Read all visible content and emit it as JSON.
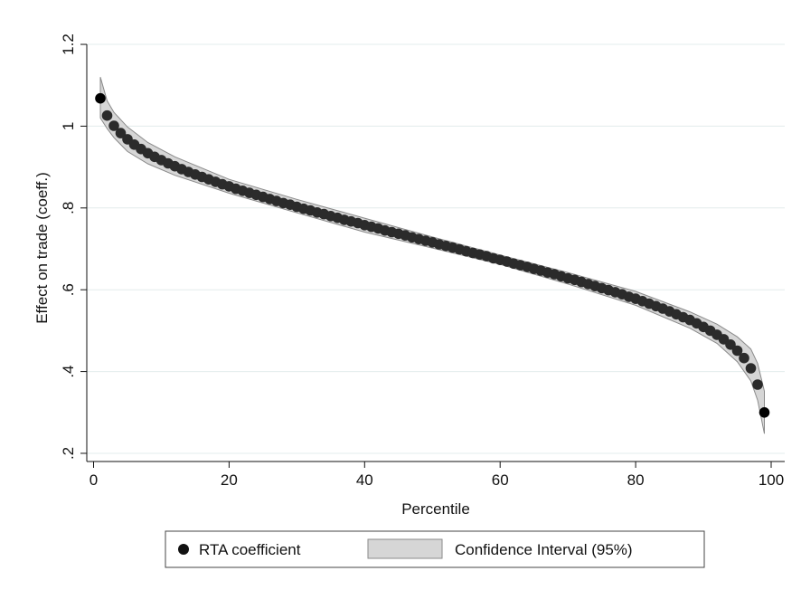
{
  "chart_data": {
    "type": "scatter",
    "xlabel": "Percentile",
    "ylabel": "Effect on trade (coeff.)",
    "xlim": [
      -1,
      102
    ],
    "ylim": [
      0.18,
      1.22
    ],
    "xticks": [
      0,
      20,
      40,
      60,
      80,
      100
    ],
    "xtick_labels": [
      "0",
      "20",
      "40",
      "60",
      "80",
      "100"
    ],
    "yticks": [
      0.2,
      0.4,
      0.6,
      0.8,
      1.0,
      1.2
    ],
    "ytick_labels": [
      ".2",
      ".4",
      ".6",
      ".8",
      "1",
      "1.2"
    ],
    "grid": "horizontal",
    "legend_position": "bottom",
    "colors": {
      "points": "#2b2b2b",
      "band_fill": "#d6d6d6",
      "band_edge": "#8a8a8a",
      "grid": "#e3ecec"
    },
    "series": [
      {
        "name": "RTA coefficient",
        "kind": "points",
        "x": [
          1,
          2,
          3,
          4,
          5,
          6,
          7,
          8,
          9,
          10,
          11,
          12,
          13,
          14,
          15,
          16,
          17,
          18,
          19,
          20,
          21,
          22,
          23,
          24,
          25,
          26,
          27,
          28,
          29,
          30,
          31,
          32,
          33,
          34,
          35,
          36,
          37,
          38,
          39,
          40,
          41,
          42,
          43,
          44,
          45,
          46,
          47,
          48,
          49,
          50,
          51,
          52,
          53,
          54,
          55,
          56,
          57,
          58,
          59,
          60,
          61,
          62,
          63,
          64,
          65,
          66,
          67,
          68,
          69,
          70,
          71,
          72,
          73,
          74,
          75,
          76,
          77,
          78,
          79,
          80,
          81,
          82,
          83,
          84,
          85,
          86,
          87,
          88,
          89,
          90,
          91,
          92,
          93,
          94,
          95,
          96,
          97,
          98,
          99
        ],
        "y": [
          1.068,
          1.026,
          1.001,
          0.983,
          0.968,
          0.955,
          0.944,
          0.934,
          0.925,
          0.917,
          0.909,
          0.902,
          0.895,
          0.888,
          0.882,
          0.876,
          0.87,
          0.864,
          0.858,
          0.853,
          0.847,
          0.842,
          0.837,
          0.832,
          0.827,
          0.822,
          0.817,
          0.812,
          0.808,
          0.803,
          0.798,
          0.794,
          0.789,
          0.785,
          0.78,
          0.776,
          0.771,
          0.767,
          0.763,
          0.758,
          0.754,
          0.75,
          0.745,
          0.741,
          0.737,
          0.733,
          0.728,
          0.724,
          0.72,
          0.716,
          0.711,
          0.707,
          0.703,
          0.699,
          0.694,
          0.69,
          0.686,
          0.682,
          0.677,
          0.673,
          0.669,
          0.664,
          0.66,
          0.656,
          0.651,
          0.647,
          0.642,
          0.638,
          0.633,
          0.628,
          0.624,
          0.619,
          0.614,
          0.609,
          0.604,
          0.599,
          0.594,
          0.589,
          0.583,
          0.578,
          0.572,
          0.566,
          0.56,
          0.554,
          0.547,
          0.54,
          0.533,
          0.526,
          0.518,
          0.509,
          0.5,
          0.49,
          0.479,
          0.466,
          0.451,
          0.433,
          0.408,
          0.368,
          0.3
        ]
      },
      {
        "name": "Confidence Interval (95%)",
        "kind": "band",
        "x": [
          1,
          2,
          3,
          5,
          8,
          12,
          20,
          30,
          40,
          50,
          60,
          70,
          80,
          88,
          92,
          95,
          97,
          98,
          99
        ],
        "upper": [
          1.12,
          1.062,
          1.034,
          0.998,
          0.96,
          0.925,
          0.87,
          0.821,
          0.775,
          0.729,
          0.685,
          0.642,
          0.596,
          0.546,
          0.516,
          0.485,
          0.455,
          0.42,
          0.352
        ],
        "lower": [
          1.02,
          0.994,
          0.972,
          0.938,
          0.908,
          0.88,
          0.836,
          0.788,
          0.741,
          0.702,
          0.662,
          0.614,
          0.562,
          0.506,
          0.469,
          0.424,
          0.377,
          0.33,
          0.248
        ]
      }
    ]
  },
  "legend": {
    "items": [
      {
        "label": "RTA coefficient"
      },
      {
        "label": "Confidence Interval (95%)"
      }
    ]
  }
}
